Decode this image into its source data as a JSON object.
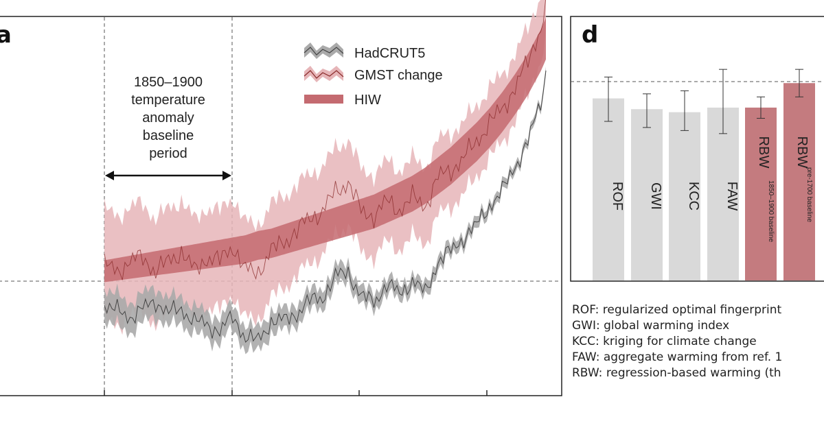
{
  "colors": {
    "hadcrut_line": "#444444",
    "hadcrut_band": "#aaaaaa",
    "gmst_line": "#8a2a2a",
    "gmst_band": "#e6b5b8",
    "hiw_band": "#c46a70",
    "bar_grey": "#d9d9d9",
    "bar_red": "#c47b7f"
  },
  "panel_a": {
    "letter": "a",
    "legend": [
      "HadCRUT5",
      "GMST change",
      "HIW"
    ],
    "annotation": [
      "1850–1900",
      "temperature",
      "anomaly",
      "baseline",
      "period"
    ]
  },
  "panel_d": {
    "letter": "d",
    "definitions": [
      "ROF: regularized optimal fingerprint",
      "GWI: global warming index",
      "KCC: kriging for climate change",
      "FAW: aggregate warming from ref. 1",
      "RBW: regression-based warming (th"
    ]
  },
  "chart_data": [
    {
      "type": "line",
      "x": [
        1850,
        1855,
        1860,
        1865,
        1870,
        1875,
        1880,
        1885,
        1890,
        1895,
        1900,
        1905,
        1910,
        1915,
        1920,
        1925,
        1930,
        1935,
        1940,
        1945,
        1950,
        1955,
        1960,
        1965,
        1970,
        1975,
        1980,
        1985,
        1990,
        1995,
        2000,
        2005,
        2010,
        2015,
        2020,
        2022
      ],
      "series": [
        {
          "name": "HadCRUT5",
          "values": [
            -0.12,
            -0.15,
            -0.18,
            -0.14,
            -0.1,
            -0.16,
            -0.14,
            -0.2,
            -0.22,
            -0.25,
            -0.18,
            -0.28,
            -0.3,
            -0.2,
            -0.2,
            -0.16,
            -0.1,
            -0.08,
            0.02,
            0.05,
            -0.08,
            -0.1,
            -0.02,
            -0.06,
            0.0,
            -0.06,
            0.1,
            0.15,
            0.22,
            0.28,
            0.38,
            0.45,
            0.58,
            0.7,
            0.9,
            1.05
          ]
        },
        {
          "name": "GMST change",
          "values": [
            0.08,
            0.05,
            0.1,
            0.12,
            0.05,
            0.1,
            0.15,
            0.05,
            0.12,
            0.1,
            0.18,
            0.05,
            0.05,
            0.15,
            0.2,
            0.25,
            0.32,
            0.35,
            0.45,
            0.5,
            0.35,
            0.33,
            0.4,
            0.36,
            0.42,
            0.38,
            0.52,
            0.56,
            0.62,
            0.7,
            0.8,
            0.86,
            0.98,
            1.1,
            1.28,
            1.38
          ]
        },
        {
          "name": "HIW",
          "values": [
            0.05,
            0.06,
            0.07,
            0.08,
            0.09,
            0.1,
            0.11,
            0.12,
            0.13,
            0.14,
            0.15,
            0.16,
            0.18,
            0.19,
            0.21,
            0.23,
            0.25,
            0.27,
            0.29,
            0.31,
            0.33,
            0.35,
            0.38,
            0.41,
            0.44,
            0.48,
            0.53,
            0.58,
            0.64,
            0.7,
            0.77,
            0.85,
            0.94,
            1.04,
            1.16,
            1.22
          ]
        }
      ],
      "xlim": [
        1800,
        2022
      ],
      "ylim": [
        -0.7,
        1.5
      ]
    },
    {
      "type": "bar",
      "categories": [
        "ROF",
        "GWI",
        "KCC",
        "FAW",
        "RBW",
        "RBW"
      ],
      "subcategories": [
        "",
        "",
        "",
        "",
        "1850–1900 baseline",
        "pre-1700 baseline"
      ],
      "values": [
        1.19,
        1.12,
        1.1,
        1.13,
        1.13,
        1.29
      ],
      "error_low": [
        1.04,
        1.0,
        0.98,
        0.96,
        1.06,
        1.2
      ],
      "error_high": [
        1.33,
        1.22,
        1.24,
        1.38,
        1.2,
        1.38
      ],
      "ylim": [
        0,
        1.3
      ]
    }
  ]
}
